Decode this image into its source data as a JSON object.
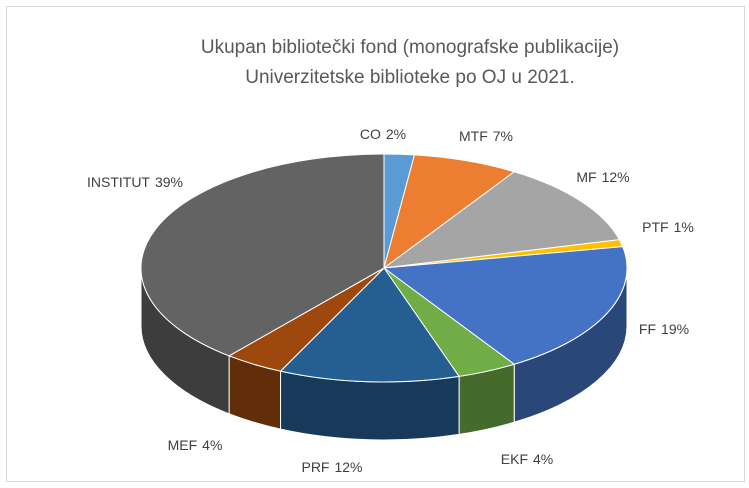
{
  "chart_data": {
    "type": "pie3d",
    "title": [
      "Ukupan bibliotečki fond (monografske publikacije)",
      "Univerzitetske biblioteke po OJ u 2021."
    ],
    "categories": [
      "CO",
      "MTF",
      "MF",
      "PTF",
      "FF",
      "EKF",
      "PRF",
      "MEF",
      "INSTITUT"
    ],
    "values": [
      2,
      7,
      12,
      1,
      19,
      4,
      12,
      4,
      39
    ],
    "value_labels": [
      "2%",
      "7%",
      "12%",
      "1%",
      "19%",
      "4%",
      "12%",
      "4%",
      "39%"
    ],
    "colors": [
      "#5b9bd5",
      "#ed7d31",
      "#a5a5a5",
      "#ffc000",
      "#4472c4",
      "#70ad47",
      "#255e91",
      "#9e480e",
      "#636363"
    ]
  }
}
